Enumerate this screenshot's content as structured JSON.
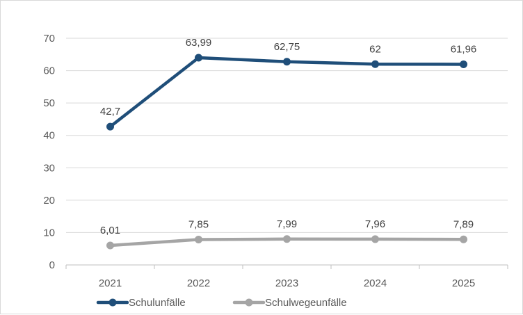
{
  "chart_data": {
    "type": "line",
    "categories": [
      "2021",
      "2022",
      "2023",
      "2024",
      "2025"
    ],
    "series": [
      {
        "name": "Schulunfälle",
        "values": [
          42.7,
          63.99,
          62.75,
          62,
          61.96
        ],
        "labels": [
          "42,7",
          "63,99",
          "62,75",
          "62",
          "61,96"
        ],
        "color": "#1f4e79"
      },
      {
        "name": "Schulwegeunfälle",
        "values": [
          6.01,
          7.85,
          7.99,
          7.96,
          7.89
        ],
        "labels": [
          "6,01",
          "7,85",
          "7,99",
          "7,96",
          "7,89"
        ],
        "color": "#a5a5a5"
      }
    ],
    "yticks": [
      "0",
      "10",
      "20",
      "30",
      "40",
      "50",
      "60",
      "70"
    ],
    "ylim": [
      0,
      70
    ],
    "grid": true,
    "legend_position": "bottom-left"
  }
}
